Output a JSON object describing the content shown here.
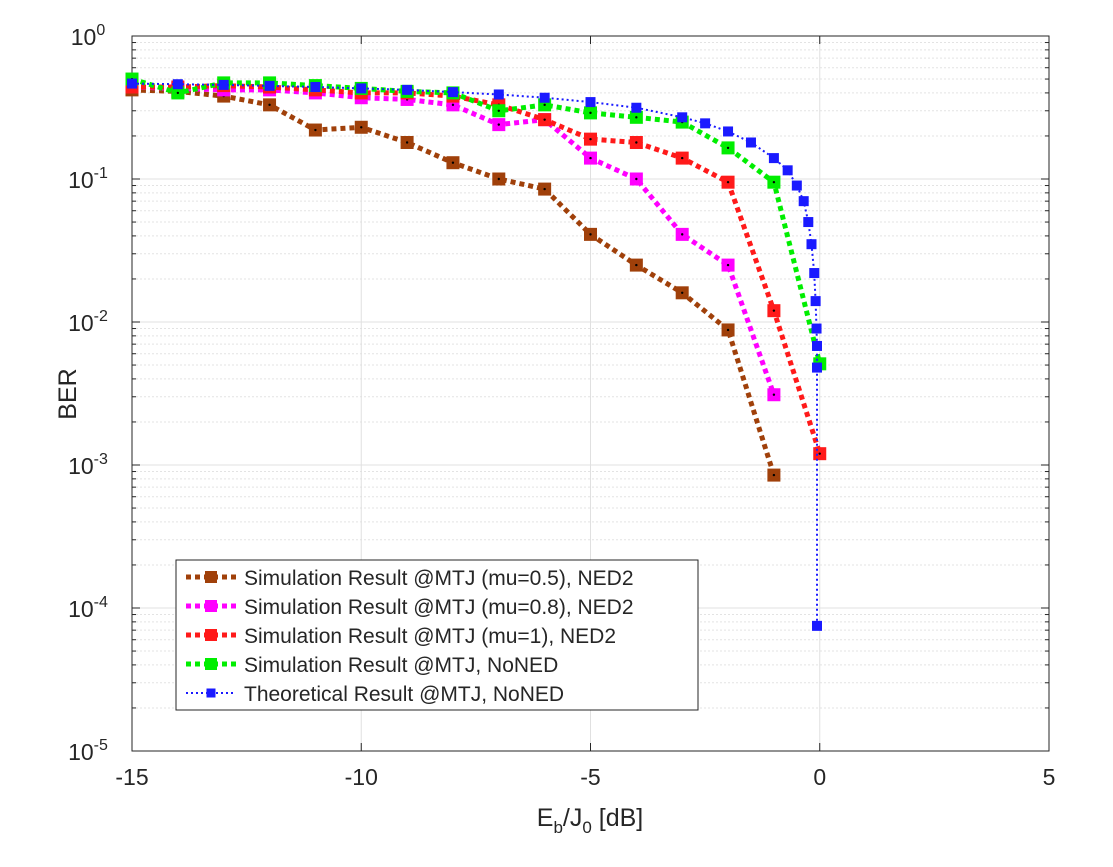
{
  "chart_data": {
    "type": "line",
    "xlabel": {
      "base": "E",
      "sub1": "b",
      "mid": "/J",
      "sub2": "0",
      "tail": " [dB]"
    },
    "ylabel": "BER",
    "xlim": [
      -15,
      5
    ],
    "ylim": [
      1e-05,
      1
    ],
    "yscale": "log",
    "grid": true,
    "minor_grid": true,
    "x_ticks": [
      "-15",
      "-10",
      "-5",
      "0",
      "5"
    ],
    "x_tick_values": [
      -15,
      -10,
      -5,
      0,
      5
    ],
    "y_ticks": [
      {
        "value": 1,
        "base": "10",
        "exp": "0"
      },
      {
        "value": 0.1,
        "base": "10",
        "exp": "-1"
      },
      {
        "value": 0.01,
        "base": "10",
        "exp": "-2"
      },
      {
        "value": 0.001,
        "base": "10",
        "exp": "-3"
      },
      {
        "value": 0.0001,
        "base": "10",
        "exp": "-4"
      },
      {
        "value": 1e-05,
        "base": "10",
        "exp": "-5"
      }
    ],
    "legend_position": "bottom-left",
    "series": [
      {
        "name": "Simulation Result @MTJ (mu=0.5), NED2",
        "color": "#a0400a",
        "style": "dotted-thick",
        "x": [
          -15,
          -14,
          -13,
          -12,
          -11,
          -10,
          -9,
          -8,
          -7,
          -6,
          -5,
          -4,
          -3,
          -2,
          -1
        ],
        "y": [
          0.42,
          0.41,
          0.38,
          0.33,
          0.22,
          0.23,
          0.18,
          0.13,
          0.1,
          0.085,
          0.041,
          0.025,
          0.016,
          0.0088,
          0.00085
        ]
      },
      {
        "name": "Simulation Result @MTJ (mu=0.8), NED2",
        "color": "#ff00ff",
        "style": "dotted-thick",
        "x": [
          -15,
          -14,
          -13,
          -12,
          -11,
          -10,
          -9,
          -8,
          -7,
          -6,
          -5,
          -4,
          -3,
          -2,
          -1
        ],
        "y": [
          0.44,
          0.43,
          0.42,
          0.42,
          0.4,
          0.37,
          0.36,
          0.33,
          0.24,
          0.26,
          0.14,
          0.1,
          0.041,
          0.025,
          0.0031
        ]
      },
      {
        "name": "Simulation Result @MTJ (mu=1), NED2",
        "color": "#ff1a1a",
        "style": "dotted-thick",
        "x": [
          -15,
          -14,
          -13,
          -12,
          -11,
          -10,
          -9,
          -8,
          -7,
          -6,
          -5,
          -4,
          -3,
          -2,
          -1,
          0
        ],
        "y": [
          0.44,
          0.44,
          0.45,
          0.44,
          0.42,
          0.4,
          0.4,
          0.38,
          0.33,
          0.26,
          0.19,
          0.18,
          0.14,
          0.095,
          0.012,
          0.0012
        ]
      },
      {
        "name": "Simulation Result @MTJ, NoNED",
        "color": "#00ee00",
        "style": "dotted-thick",
        "x": [
          -15,
          -14,
          -13,
          -12,
          -11,
          -10,
          -9,
          -8,
          -7,
          -6,
          -5,
          -4,
          -3,
          -2,
          -1,
          0
        ],
        "y": [
          0.5,
          0.4,
          0.47,
          0.47,
          0.45,
          0.43,
          0.41,
          0.4,
          0.3,
          0.33,
          0.29,
          0.27,
          0.25,
          0.165,
          0.095,
          0.0051
        ]
      },
      {
        "name": "Theoretical Result @MTJ, NoNED",
        "color": "#1a1aff",
        "style": "dotted-thin",
        "x": [
          -15,
          -14,
          -13,
          -12,
          -11,
          -10,
          -9,
          -8,
          -7,
          -6,
          -5,
          -4,
          -3,
          -2.5,
          -2,
          -1.5,
          -1,
          -0.7,
          -0.5,
          -0.35,
          -0.25,
          -0.18,
          -0.12,
          -0.09,
          -0.07,
          -0.06,
          -0.06,
          -0.06
        ],
        "y": [
          0.465,
          0.46,
          0.455,
          0.448,
          0.44,
          0.43,
          0.42,
          0.405,
          0.39,
          0.37,
          0.345,
          0.315,
          0.27,
          0.245,
          0.215,
          0.18,
          0.14,
          0.115,
          0.09,
          0.07,
          0.05,
          0.035,
          0.022,
          0.014,
          0.009,
          0.0068,
          0.0048,
          7.5e-05
        ]
      }
    ]
  }
}
